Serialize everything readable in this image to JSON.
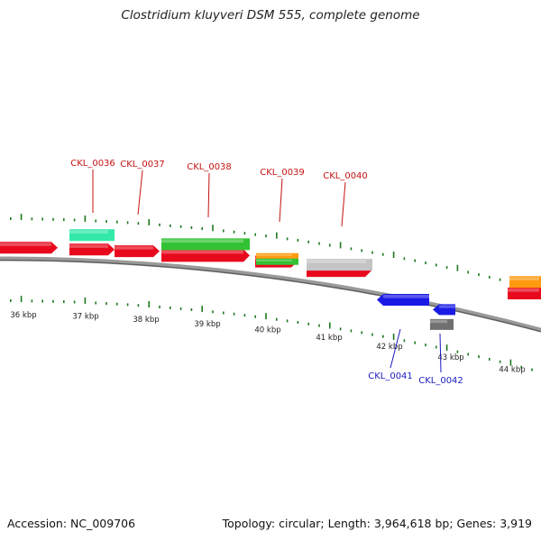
{
  "title": "Clostridium kluyveri DSM 555, complete genome",
  "footer": {
    "accession": "Accession: NC_009706",
    "info": "Topology: circular; Length: 3,964,618 bp; Genes: 3,919"
  },
  "colors": {
    "red": "#e8091d",
    "green": "#33c233",
    "teal": "#33e9a8",
    "orange": "#ff9a11",
    "gray": "#c4c4c4",
    "darkgray": "#707070",
    "blue": "#1a1ae6",
    "tick": "#1e7a1e",
    "forward_label": "#c41212",
    "reverse_label": "#1a1abf"
  },
  "scale_labels": [
    "36 kbp",
    "37 kbp",
    "38 kbp",
    "39 kbp",
    "40 kbp",
    "41 kbp",
    "42 kbp",
    "43 kbp",
    "44 kbp"
  ],
  "forward_labels": [
    "CKL_0036",
    "CKL_0037",
    "CKL_0038",
    "CKL_0039",
    "CKL_0040"
  ],
  "reverse_labels": [
    "CKL_0041",
    "CKL_0042"
  ]
}
